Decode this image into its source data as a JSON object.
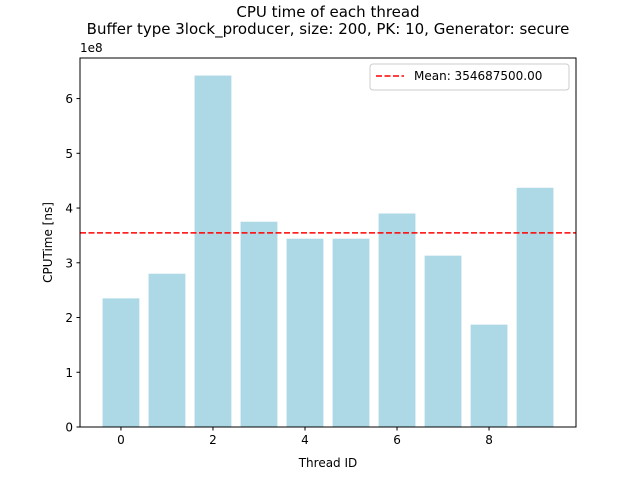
{
  "chart_data": {
    "type": "bar",
    "title": "CPU time of each thread",
    "subtitle": "Buffer type 3lock_producer, size: 200, PK: 10, Generator: secure",
    "xlabel": "Thread ID",
    "ylabel": "CPUTime [ns]",
    "y_scale_label": "1e8",
    "categories": [
      0,
      1,
      2,
      3,
      4,
      5,
      6,
      7,
      8,
      9
    ],
    "values": [
      235000000,
      280000000,
      642000000,
      375000000,
      344000000,
      344000000,
      390000000,
      313000000,
      187000000,
      437000000
    ],
    "x_ticks": [
      0,
      2,
      4,
      6,
      8
    ],
    "x_tick_labels": [
      "0",
      "2",
      "4",
      "6",
      "8"
    ],
    "y_ticks": [
      0,
      100000000,
      200000000,
      300000000,
      400000000,
      500000000,
      600000000
    ],
    "y_tick_labels": [
      "0",
      "1",
      "2",
      "3",
      "4",
      "5",
      "6"
    ],
    "xlim": [
      -0.89,
      9.89
    ],
    "ylim": [
      0,
      674100000
    ],
    "mean": {
      "value": 354687500,
      "label": "Mean: 354687500.00",
      "color": "#ff0000",
      "style": "dashed"
    },
    "bar_color": "#add8e6",
    "grid": false,
    "legend": {
      "placement": "top-right",
      "entries": [
        "Mean: 354687500.00"
      ]
    }
  }
}
